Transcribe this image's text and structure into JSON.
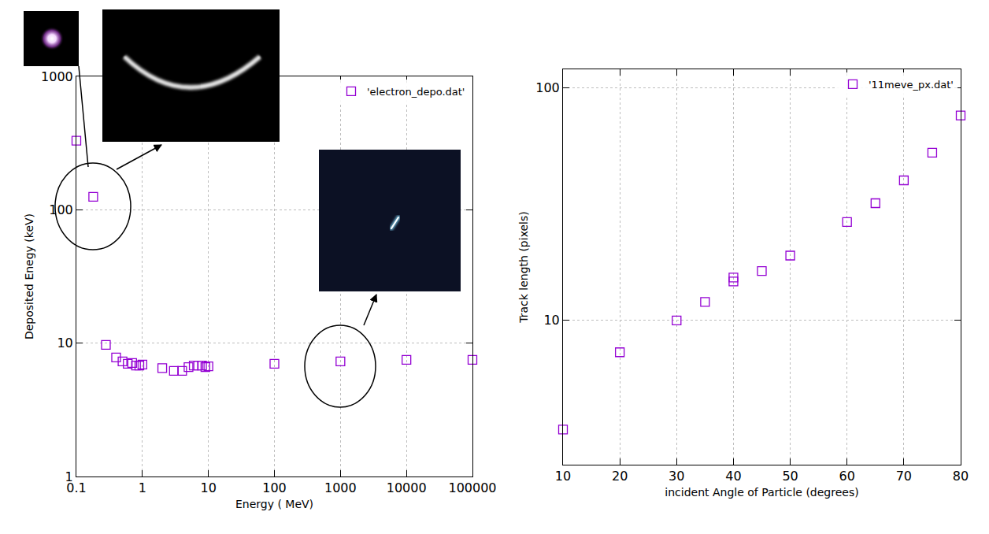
{
  "chart_data": [
    {
      "type": "scatter",
      "x": [
        0.1,
        0.18,
        0.28,
        0.4,
        0.5,
        0.6,
        0.7,
        0.8,
        0.9,
        1,
        2,
        3,
        4,
        5,
        6,
        7,
        8,
        9,
        10,
        100,
        1000,
        10000,
        100000
      ],
      "series": [
        {
          "name": "'electron_depo.dat'",
          "color": "#9400d3",
          "marker": "square-open",
          "values": [
            330,
            125,
            9.7,
            7.8,
            7.3,
            7.0,
            7.1,
            6.8,
            6.8,
            6.9,
            6.5,
            6.2,
            6.2,
            6.6,
            6.8,
            6.8,
            6.8,
            6.6,
            6.7,
            7.0,
            7.3,
            7.5,
            7.5
          ]
        }
      ],
      "x_label": "Energy ( MeV)",
      "y_label": "Deposited Enegy (keV)",
      "xlim": [
        0.1,
        100000
      ],
      "ylim": [
        1,
        1000
      ],
      "xticks": [
        0.1,
        1,
        10,
        100,
        1000,
        10000,
        100000
      ],
      "yticks": [
        1,
        10,
        100,
        1000
      ],
      "log": true,
      "grid": true,
      "legend": "top right"
    },
    {
      "type": "scatter",
      "x": [
        10,
        20,
        30,
        35,
        40,
        40,
        45,
        50,
        60,
        65,
        70,
        75,
        80
      ],
      "series": [
        {
          "name": "'11meve_px.dat'",
          "color": "#9400d3",
          "marker": "square-open",
          "values": [
            3.4,
            7.3,
            10,
            12,
            15.3,
            14.7,
            16.3,
            19,
            26.5,
            31.9,
            40,
            52.6,
            76
          ]
        }
      ],
      "x_label": "incident Angle of Particle (degrees)",
      "y_label": "Track length (pixels)",
      "xlim": [
        10,
        80
      ],
      "ylim": [
        2.4,
        120
      ],
      "xticks": [
        10,
        20,
        30,
        40,
        50,
        60,
        70,
        80
      ],
      "yticks": [
        10,
        100
      ],
      "log": "y",
      "grid": true,
      "legend": "top right"
    }
  ]
}
